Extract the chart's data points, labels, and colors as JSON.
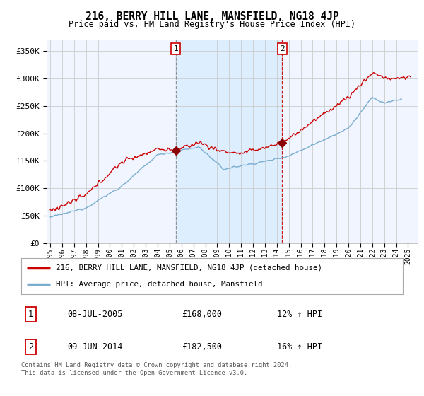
{
  "title": "216, BERRY HILL LANE, MANSFIELD, NG18 4JP",
  "subtitle": "Price paid vs. HM Land Registry's House Price Index (HPI)",
  "ylabel_ticks": [
    "£0",
    "£50K",
    "£100K",
    "£150K",
    "£200K",
    "£250K",
    "£300K",
    "£350K"
  ],
  "ytick_vals": [
    0,
    50000,
    100000,
    150000,
    200000,
    250000,
    300000,
    350000
  ],
  "ylim": [
    0,
    370000
  ],
  "hpi_color": "#7aadcf",
  "price_color": "#cc0000",
  "shade_color": "#ddeeff",
  "sale1_x": 2005.52,
  "sale1_y": 168000,
  "sale2_x": 2014.44,
  "sale2_y": 182500,
  "legend_house_label": "216, BERRY HILL LANE, MANSFIELD, NG18 4JP (detached house)",
  "legend_hpi_label": "HPI: Average price, detached house, Mansfield",
  "note1_label": "1",
  "note1_date": "08-JUL-2005",
  "note1_price": "£168,000",
  "note1_hpi": "12% ↑ HPI",
  "note2_label": "2",
  "note2_date": "09-JUN-2014",
  "note2_price": "£182,500",
  "note2_hpi": "16% ↑ HPI",
  "footer": "Contains HM Land Registry data © Crown copyright and database right 2024.\nThis data is licensed under the Open Government Licence v3.0.",
  "background_color": "#ffffff",
  "plot_bg_color": "#f0f5ff",
  "xlim_left": 1994.7,
  "xlim_right": 2025.8
}
